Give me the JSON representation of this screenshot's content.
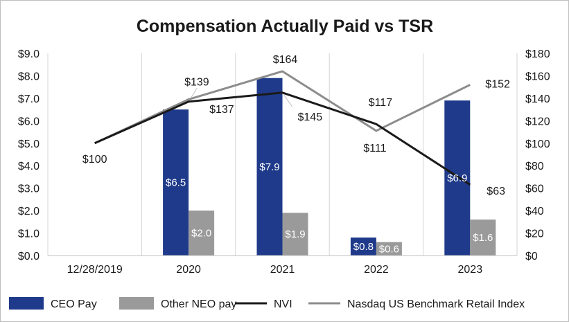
{
  "chart_data": {
    "type": "bar",
    "title": "Compensation Actually Paid vs TSR",
    "categories": [
      "12/28/2019",
      "2020",
      "2021",
      "2022",
      "2023"
    ],
    "y_left": {
      "range": [
        0,
        9
      ],
      "ticks": [
        "$0.0",
        "$1.0",
        "$2.0",
        "$3.0",
        "$4.0",
        "$5.0",
        "$6.0",
        "$7.0",
        "$8.0",
        "$9.0"
      ]
    },
    "y_right": {
      "range": [
        0,
        180
      ],
      "ticks": [
        "$0",
        "$20",
        "$40",
        "$60",
        "$80",
        "$100",
        "$120",
        "$140",
        "$160",
        "$180"
      ]
    },
    "bar_series": [
      {
        "name": "CEO Pay",
        "color": "#1f3a8a",
        "values": [
          null,
          6.5,
          7.9,
          0.8,
          6.9
        ],
        "labels": [
          "",
          "$6.5",
          "$7.9",
          "$0.8",
          "$6.9"
        ]
      },
      {
        "name": "Other NEO pay",
        "color": "#9a9a9a",
        "values": [
          null,
          2.0,
          1.9,
          0.6,
          1.6
        ],
        "labels": [
          "",
          "$2.0",
          "$1.9",
          "$0.6",
          "$1.6"
        ]
      }
    ],
    "line_series": [
      {
        "name": "NVI",
        "color": "#1a1a1a",
        "axis": "right",
        "values": [
          100,
          137,
          145,
          117,
          63
        ],
        "labels": [
          "$100",
          "$137",
          "$145",
          "$117",
          "$63"
        ]
      },
      {
        "name": "Nasdaq US Benchmark Retail Index",
        "color": "#8c8c8c",
        "axis": "right",
        "values": [
          100,
          139,
          164,
          111,
          152
        ],
        "labels": [
          "",
          "$139",
          "$164",
          "$111",
          "$152"
        ]
      }
    ],
    "legend": [
      "CEO Pay",
      "Other NEO pay",
      "NVI",
      "Nasdaq US Benchmark Retail Index"
    ],
    "legend_position": "bottom",
    "grid": "vertical"
  }
}
